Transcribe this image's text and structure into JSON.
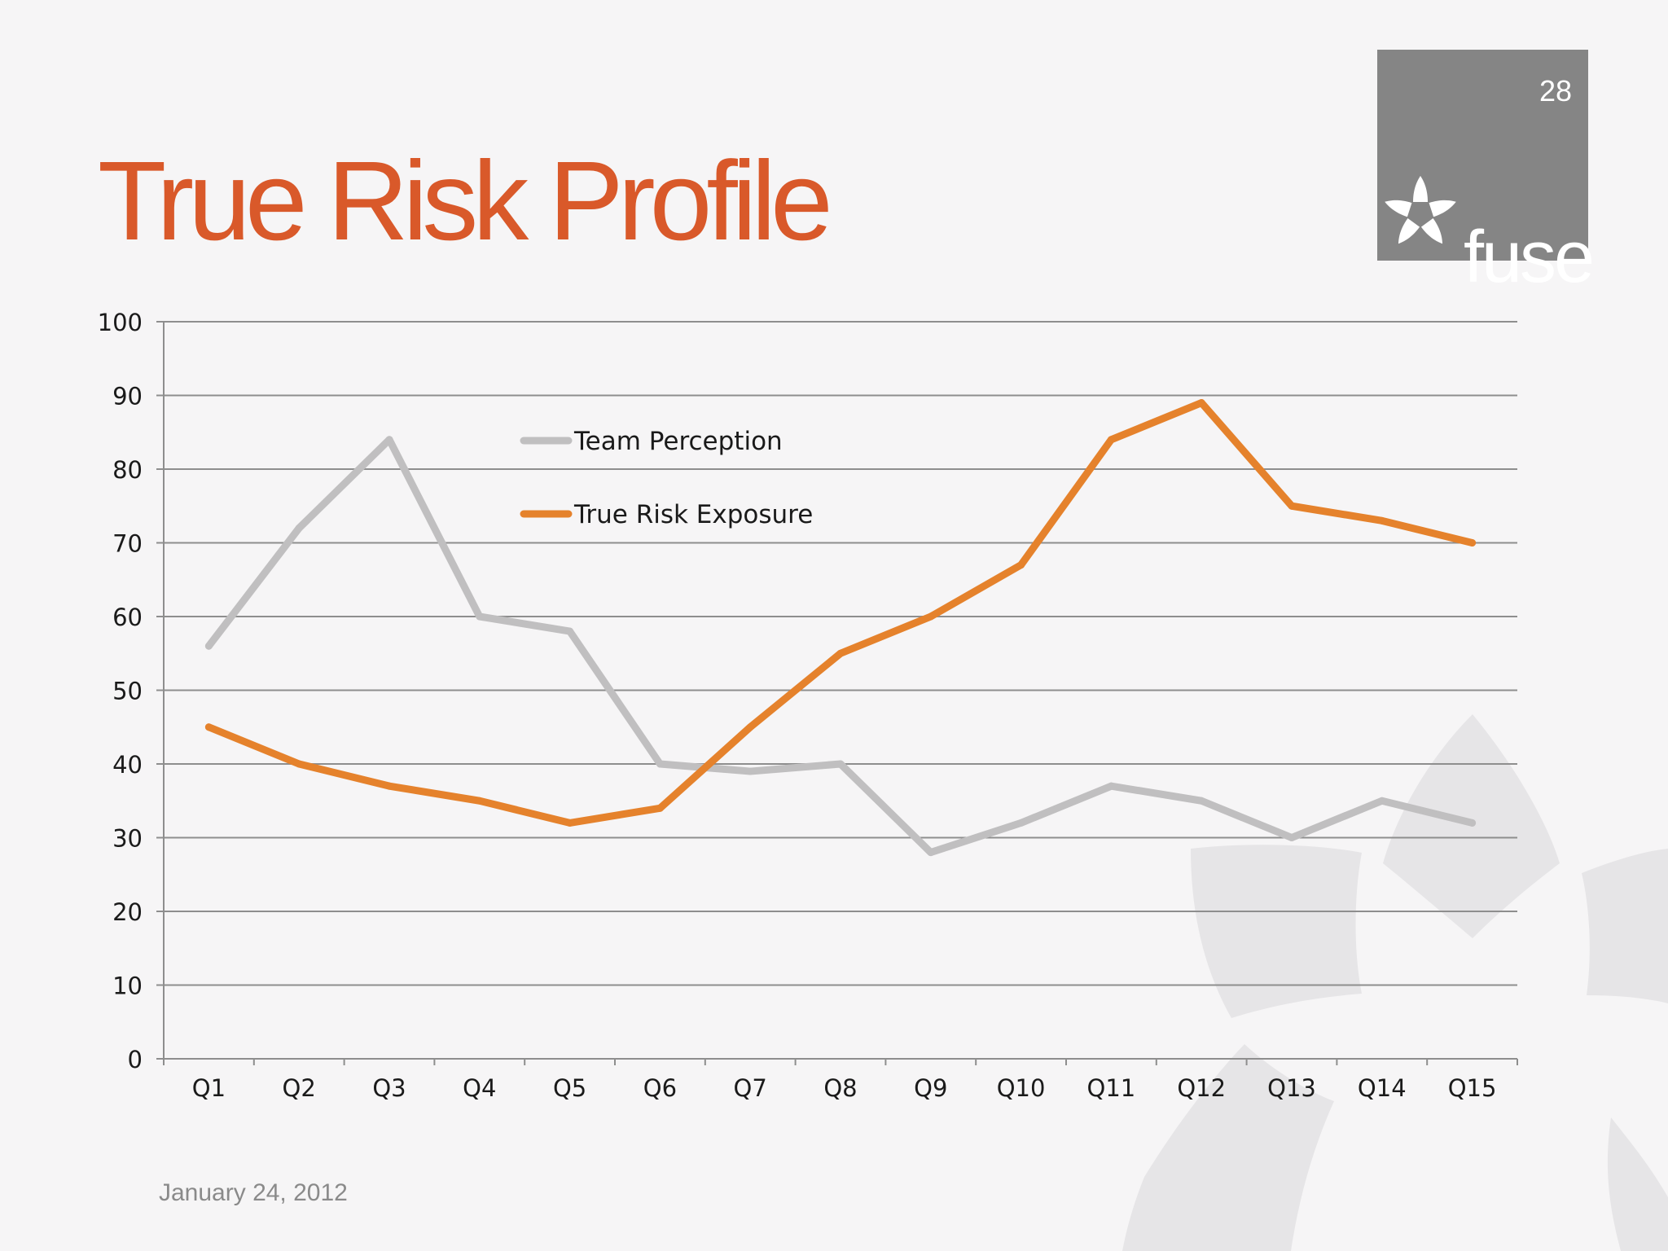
{
  "slide": {
    "title": "True Risk Profile",
    "page_number": "28",
    "brand": "fuse",
    "date": "January 24, 2012"
  },
  "colors": {
    "title": "#d9592a",
    "series_gray": "#c0bfc0",
    "series_orange": "#e5822c",
    "logo_bg": "#858585",
    "background": "#f6f5f6"
  },
  "chart_data": {
    "type": "line",
    "categories": [
      "Q1",
      "Q2",
      "Q3",
      "Q4",
      "Q5",
      "Q6",
      "Q7",
      "Q8",
      "Q9",
      "Q10",
      "Q11",
      "Q12",
      "Q13",
      "Q14",
      "Q15"
    ],
    "series": [
      {
        "name": "Team Perception",
        "color": "#c0bfc0",
        "values": [
          56,
          72,
          84,
          60,
          58,
          40,
          39,
          40,
          28,
          32,
          37,
          35,
          30,
          35,
          32
        ]
      },
      {
        "name": "True Risk Exposure",
        "color": "#e5822c",
        "values": [
          45,
          40,
          37,
          35,
          32,
          34,
          45,
          55,
          60,
          67,
          84,
          89,
          75,
          73,
          70
        ]
      }
    ],
    "ylim": [
      0,
      100
    ],
    "yticks": [
      0,
      10,
      20,
      30,
      40,
      50,
      60,
      70,
      80,
      90,
      100
    ],
    "grid": true,
    "legend_position": "top-center"
  }
}
